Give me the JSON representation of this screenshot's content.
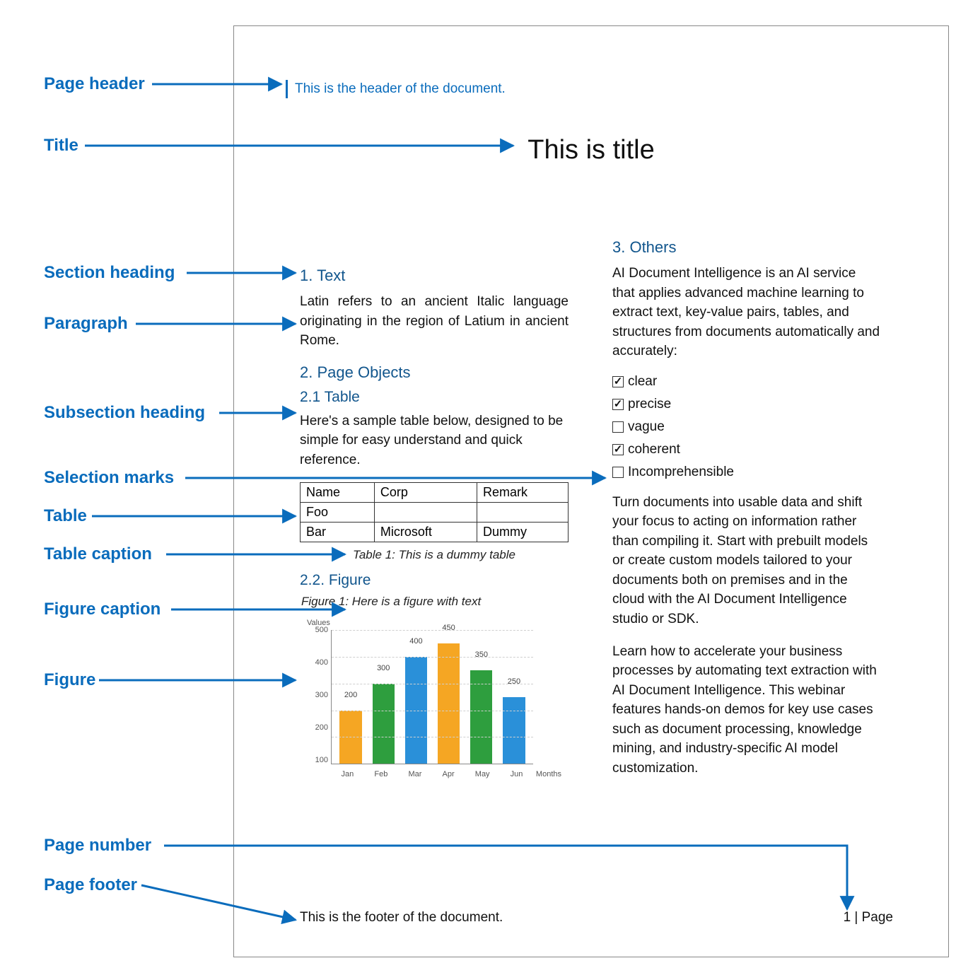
{
  "colors": {
    "accent_blue": "#0a6cbc",
    "heading_blue": "#12568d",
    "text": "#111111",
    "border": "#888888",
    "grid": "#cfcfcf",
    "bar_orange": "#f5a623",
    "bar_green": "#2e9e3e",
    "bar_blue": "#2a90d9"
  },
  "legend": {
    "page_header": "Page header",
    "title": "Title",
    "section_heading": "Section heading",
    "paragraph": "Paragraph",
    "subsection_heading": "Subsection heading",
    "selection_marks": "Selection marks",
    "table": "Table",
    "table_caption": "Table caption",
    "figure_caption": "Figure caption",
    "figure": "Figure",
    "page_number": "Page number",
    "page_footer": "Page footer"
  },
  "doc": {
    "header": "This is the header of the document.",
    "title": "This is title",
    "section1_heading": "1. Text",
    "section1_para": "Latin refers to an ancient Italic language originating in the region of Latium in ancient Rome.",
    "section2_heading": "2. Page Objects",
    "section2_1_heading": "2.1 Table",
    "section2_1_para": "Here's a sample table below, designed to be simple for easy understand and quick reference.",
    "table": {
      "columns": [
        "Name",
        "Corp",
        "Remark"
      ],
      "rows": [
        [
          "Foo",
          "",
          ""
        ],
        [
          "Bar",
          "Microsoft",
          "Dummy"
        ]
      ],
      "caption": "Table 1: This is a dummy table"
    },
    "section2_2_heading": "2.2. Figure",
    "figure_caption": "Figure 1: Here is a figure with text",
    "chart": {
      "type": "bar",
      "y_axis_title": "Values",
      "x_axis_title": "Months",
      "ylim": [
        0,
        500
      ],
      "ytick_step": 100,
      "categories": [
        "Jan",
        "Feb",
        "Mar",
        "Apr",
        "May",
        "Jun"
      ],
      "values": [
        200,
        300,
        400,
        450,
        350,
        250
      ],
      "bar_color_pattern": [
        "bar_orange",
        "bar_green",
        "bar_blue",
        "bar_orange",
        "bar_green",
        "bar_blue"
      ]
    },
    "section3_heading": "3. Others",
    "section3_para1": "AI Document Intelligence is an AI service that applies advanced machine learning to extract text, key-value pairs, tables, and structures from documents automatically and accurately:",
    "checks": [
      {
        "label": "clear",
        "checked": true
      },
      {
        "label": "precise",
        "checked": true
      },
      {
        "label": "vague",
        "checked": false
      },
      {
        "label": "coherent",
        "checked": true
      },
      {
        "label": "Incomprehensible",
        "checked": false
      }
    ],
    "section3_para2": "Turn documents into usable data and shift your focus to acting on information rather than compiling it. Start with prebuilt models or create custom models tailored to your documents both on premises and in the cloud with the AI Document Intelligence studio or SDK.",
    "section3_para3": "Learn how to accelerate your business processes by automating text extraction with AI Document Intelligence. This webinar features hands-on demos for key use cases such as document processing, knowledge mining, and industry-specific AI model customization.",
    "page_footer": "This is the footer of the document.",
    "page_number": "1 | Page"
  }
}
